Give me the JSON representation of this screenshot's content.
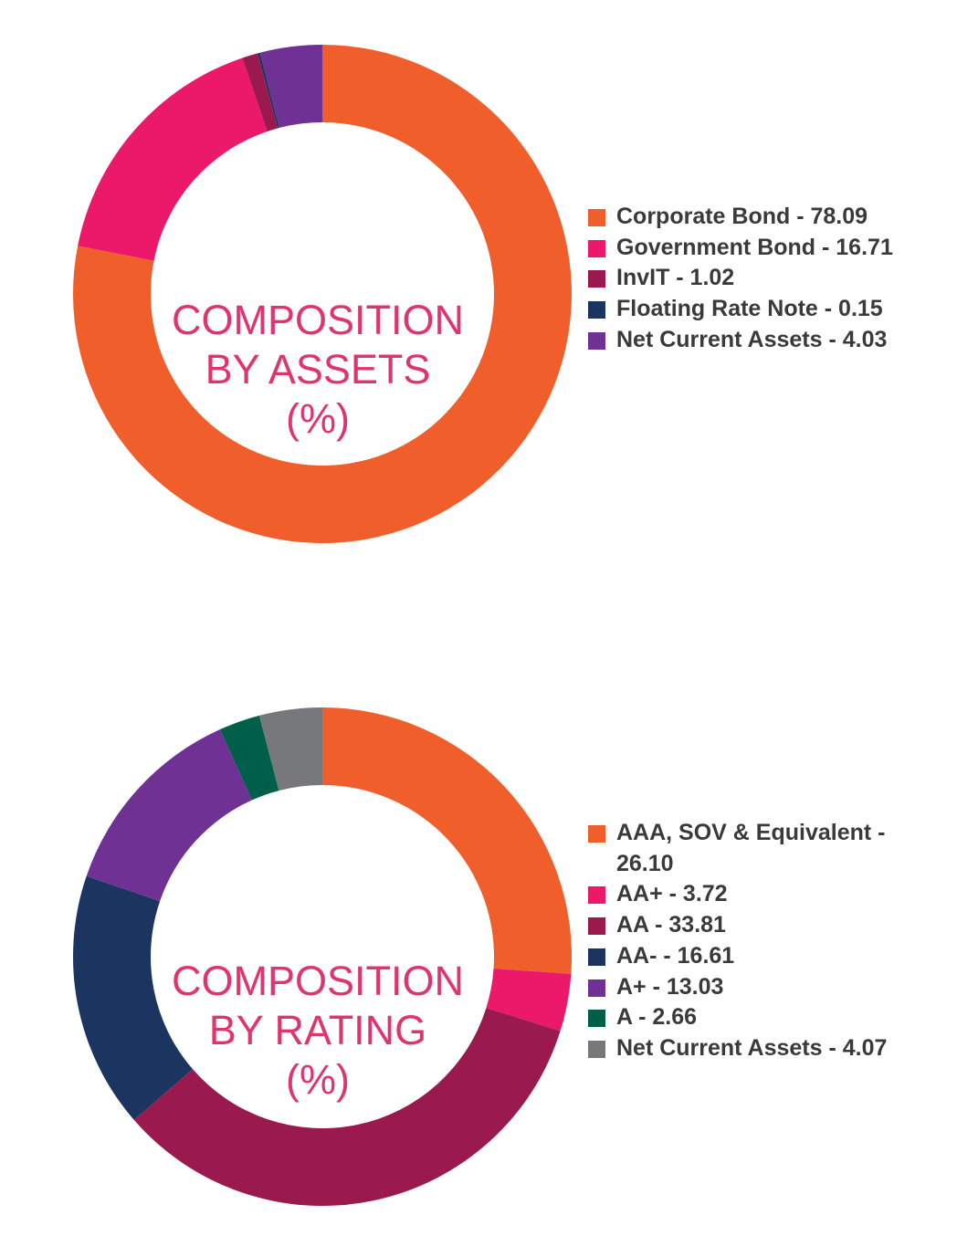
{
  "chart_data": [
    {
      "type": "pie",
      "title": "",
      "center_label": [
        "COMPOSITION",
        "BY ASSETS",
        "(%)"
      ],
      "legend_position": "right",
      "series": [
        {
          "label": "Corporate Bond - 78.09",
          "name": "Corporate Bond",
          "value": 78.09,
          "color": "#f05f2b"
        },
        {
          "label": "Government Bond - 16.71",
          "name": "Government Bond",
          "value": 16.71,
          "color": "#ec1869"
        },
        {
          "label": "InvIT - 1.02",
          "name": "InvIT",
          "value": 1.02,
          "color": "#9a1a4f"
        },
        {
          "label": "Floating Rate Note - 0.15",
          "name": "Floating Rate Note",
          "value": 0.15,
          "color": "#1b3560"
        },
        {
          "label": "Net Current Assets - 4.03",
          "name": "Net Current Assets",
          "value": 4.03,
          "color": "#6f3193"
        }
      ]
    },
    {
      "type": "pie",
      "title": "",
      "center_label": [
        "COMPOSITION",
        "BY RATING",
        "(%)"
      ],
      "legend_position": "right",
      "series": [
        {
          "label": "AAA, SOV & Equivalent - 26.10",
          "name": "AAA, SOV & Equivalent",
          "value": 26.1,
          "color": "#f05f2b"
        },
        {
          "label": "AA+ - 3.72",
          "name": "AA+",
          "value": 3.72,
          "color": "#ec1869"
        },
        {
          "label": "AA - 33.81",
          "name": "AA",
          "value": 33.81,
          "color": "#9a1a4f"
        },
        {
          "label": "AA- - 16.61",
          "name": "AA-",
          "value": 16.61,
          "color": "#1b3560"
        },
        {
          "label": "A+ - 13.03",
          "name": "A+",
          "value": 13.03,
          "color": "#6f3193"
        },
        {
          "label": "A - 2.66",
          "name": "A",
          "value": 2.66,
          "color": "#005f4b"
        },
        {
          "label": "Net Current Assets - 4.07",
          "name": "Net Current Assets",
          "value": 4.07,
          "color": "#77787b"
        }
      ]
    }
  ]
}
